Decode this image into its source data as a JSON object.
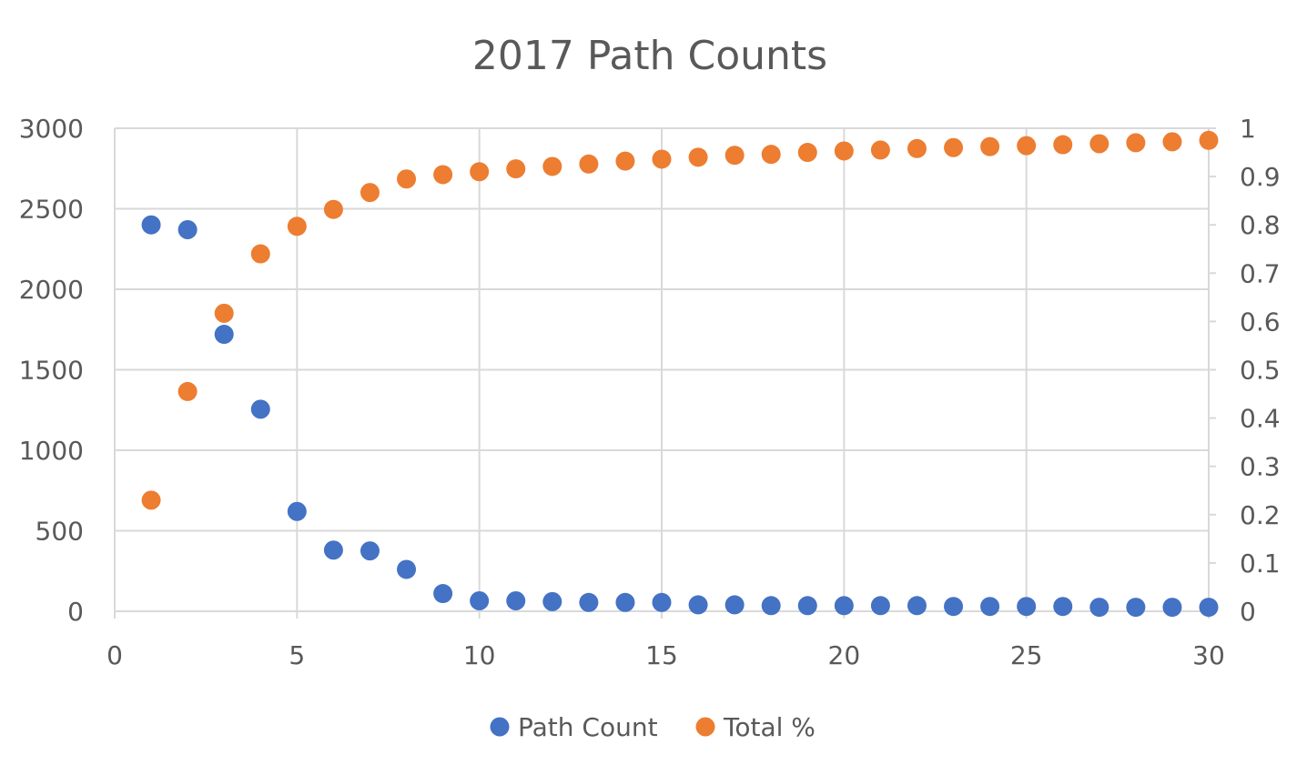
{
  "chart_data": {
    "type": "scatter",
    "title": "2017 Path Counts",
    "xlabel": "",
    "ylabel": "",
    "xlim": [
      0,
      30
    ],
    "ylim": [
      0,
      3000
    ],
    "y2lim": [
      0,
      1
    ],
    "x_ticks": [
      "0",
      "5",
      "10",
      "15",
      "20",
      "25",
      "30"
    ],
    "y_ticks": [
      "0",
      "500",
      "1000",
      "1500",
      "2000",
      "2500",
      "3000"
    ],
    "y2_ticks": [
      "0",
      "0.1",
      "0.2",
      "0.3",
      "0.4",
      "0.5",
      "0.6",
      "0.7",
      "0.8",
      "0.9",
      "1"
    ],
    "grid": true,
    "legend_position": "bottom",
    "series": [
      {
        "name": "Path Count",
        "axis": "left",
        "color": "#4472c4",
        "x": [
          1,
          2,
          3,
          4,
          5,
          6,
          7,
          8,
          9,
          10,
          11,
          12,
          13,
          14,
          15,
          16,
          17,
          18,
          19,
          20,
          21,
          22,
          23,
          24,
          25,
          26,
          27,
          28,
          29,
          30
        ],
        "y": [
          2400,
          2370,
          1720,
          1255,
          620,
          380,
          375,
          260,
          110,
          65,
          65,
          60,
          55,
          55,
          55,
          40,
          40,
          35,
          35,
          35,
          35,
          35,
          30,
          30,
          30,
          30,
          25,
          25,
          25,
          25
        ]
      },
      {
        "name": "Total %",
        "axis": "right",
        "color": "#ed7d31",
        "x": [
          1,
          2,
          3,
          4,
          5,
          6,
          7,
          8,
          9,
          10,
          11,
          12,
          13,
          14,
          15,
          16,
          17,
          18,
          19,
          20,
          21,
          22,
          23,
          24,
          25,
          26,
          27,
          28,
          29,
          30
        ],
        "y": [
          0.23,
          0.455,
          0.617,
          0.74,
          0.797,
          0.832,
          0.867,
          0.895,
          0.904,
          0.91,
          0.916,
          0.921,
          0.926,
          0.932,
          0.936,
          0.94,
          0.944,
          0.946,
          0.95,
          0.953,
          0.955,
          0.958,
          0.96,
          0.962,
          0.964,
          0.966,
          0.968,
          0.97,
          0.972,
          0.975
        ]
      }
    ]
  }
}
